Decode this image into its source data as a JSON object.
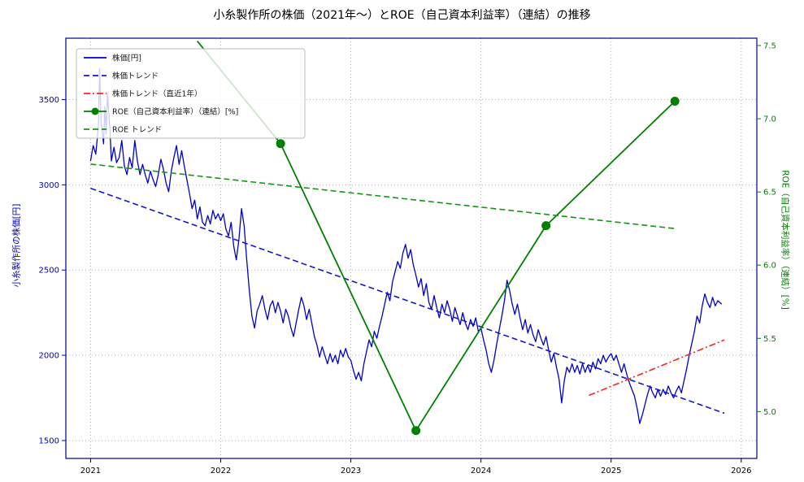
{
  "chart_data": {
    "type": "line",
    "title": "小糸製作所の株価（2021年～）とROE（自己資本利益率）（連結）の推移",
    "x_axis": {
      "ticks": [
        2021,
        2022,
        2023,
        2024,
        2025,
        2026
      ],
      "range": [
        2020.81,
        2026.12
      ]
    },
    "y_left": {
      "label": "小糸製作所の株価[円]",
      "color": "#0000cd",
      "ticks": [
        1500,
        2000,
        2500,
        3000,
        3500
      ],
      "range": [
        1395,
        3860
      ]
    },
    "y_right": {
      "label": "ROE（自己資本利益率）（連結）[%]",
      "color": "#008000",
      "ticks": [
        5.0,
        5.5,
        6.0,
        6.5,
        7.0,
        7.5
      ],
      "range": [
        4.68,
        7.55
      ]
    },
    "grid": true,
    "legend_position": "upper-left",
    "frame_color": "#00008b",
    "grid_color": "#a9a9d2",
    "series": [
      {
        "id": "price-line",
        "name": "株価[円]",
        "axis": "price",
        "color": "#0000cd",
        "style": "solid",
        "width": 1.3,
        "points": [
          [
            2021.0,
            3140
          ],
          [
            2021.02,
            3230
          ],
          [
            2021.04,
            3180
          ],
          [
            2021.06,
            3340
          ],
          [
            2021.07,
            3680
          ],
          [
            2021.08,
            3380
          ],
          [
            2021.1,
            3240
          ],
          [
            2021.11,
            3460
          ],
          [
            2021.12,
            3300
          ],
          [
            2021.13,
            3540
          ],
          [
            2021.15,
            3310
          ],
          [
            2021.16,
            3140
          ],
          [
            2021.18,
            3220
          ],
          [
            2021.2,
            3130
          ],
          [
            2021.22,
            3160
          ],
          [
            2021.24,
            3260
          ],
          [
            2021.26,
            3110
          ],
          [
            2021.28,
            3060
          ],
          [
            2021.3,
            3160
          ],
          [
            2021.32,
            3100
          ],
          [
            2021.34,
            3260
          ],
          [
            2021.36,
            3140
          ],
          [
            2021.38,
            3060
          ],
          [
            2021.4,
            3120
          ],
          [
            2021.42,
            3060
          ],
          [
            2021.44,
            3010
          ],
          [
            2021.46,
            3080
          ],
          [
            2021.48,
            3030
          ],
          [
            2021.5,
            2990
          ],
          [
            2021.52,
            3060
          ],
          [
            2021.54,
            3150
          ],
          [
            2021.56,
            3090
          ],
          [
            2021.58,
            3010
          ],
          [
            2021.6,
            2960
          ],
          [
            2021.62,
            3080
          ],
          [
            2021.64,
            3160
          ],
          [
            2021.66,
            3230
          ],
          [
            2021.68,
            3120
          ],
          [
            2021.7,
            3200
          ],
          [
            2021.72,
            3110
          ],
          [
            2021.74,
            3030
          ],
          [
            2021.76,
            2950
          ],
          [
            2021.78,
            2860
          ],
          [
            2021.8,
            2910
          ],
          [
            2021.82,
            2800
          ],
          [
            2021.84,
            2870
          ],
          [
            2021.86,
            2780
          ],
          [
            2021.88,
            2760
          ],
          [
            2021.9,
            2820
          ],
          [
            2021.92,
            2770
          ],
          [
            2021.94,
            2850
          ],
          [
            2021.96,
            2800
          ],
          [
            2021.98,
            2830
          ],
          [
            2022.0,
            2790
          ],
          [
            2022.02,
            2830
          ],
          [
            2022.04,
            2740
          ],
          [
            2022.06,
            2700
          ],
          [
            2022.08,
            2780
          ],
          [
            2022.1,
            2640
          ],
          [
            2022.12,
            2560
          ],
          [
            2022.14,
            2680
          ],
          [
            2022.16,
            2860
          ],
          [
            2022.18,
            2760
          ],
          [
            2022.2,
            2560
          ],
          [
            2022.22,
            2380
          ],
          [
            2022.24,
            2230
          ],
          [
            2022.26,
            2160
          ],
          [
            2022.28,
            2260
          ],
          [
            2022.3,
            2300
          ],
          [
            2022.32,
            2350
          ],
          [
            2022.34,
            2270
          ],
          [
            2022.36,
            2210
          ],
          [
            2022.38,
            2290
          ],
          [
            2022.4,
            2320
          ],
          [
            2022.42,
            2250
          ],
          [
            2022.44,
            2310
          ],
          [
            2022.46,
            2260
          ],
          [
            2022.48,
            2190
          ],
          [
            2022.5,
            2270
          ],
          [
            2022.52,
            2230
          ],
          [
            2022.54,
            2160
          ],
          [
            2022.56,
            2110
          ],
          [
            2022.58,
            2190
          ],
          [
            2022.6,
            2270
          ],
          [
            2022.62,
            2340
          ],
          [
            2022.64,
            2290
          ],
          [
            2022.66,
            2210
          ],
          [
            2022.68,
            2270
          ],
          [
            2022.7,
            2190
          ],
          [
            2022.72,
            2110
          ],
          [
            2022.74,
            2060
          ],
          [
            2022.76,
            1990
          ],
          [
            2022.78,
            2050
          ],
          [
            2022.8,
            2000
          ],
          [
            2022.82,
            1950
          ],
          [
            2022.84,
            2010
          ],
          [
            2022.86,
            1960
          ],
          [
            2022.88,
            2000
          ],
          [
            2022.9,
            1950
          ],
          [
            2022.92,
            2030
          ],
          [
            2022.94,
            1990
          ],
          [
            2022.96,
            2040
          ],
          [
            2022.98,
            1990
          ],
          [
            2023.0,
            1970
          ],
          [
            2023.02,
            1910
          ],
          [
            2023.04,
            1860
          ],
          [
            2023.06,
            1900
          ],
          [
            2023.08,
            1850
          ],
          [
            2023.1,
            1950
          ],
          [
            2023.12,
            2020
          ],
          [
            2023.14,
            2090
          ],
          [
            2023.16,
            2050
          ],
          [
            2023.18,
            2140
          ],
          [
            2023.2,
            2100
          ],
          [
            2023.22,
            2170
          ],
          [
            2023.24,
            2230
          ],
          [
            2023.26,
            2300
          ],
          [
            2023.28,
            2370
          ],
          [
            2023.3,
            2320
          ],
          [
            2023.32,
            2430
          ],
          [
            2023.34,
            2490
          ],
          [
            2023.36,
            2550
          ],
          [
            2023.38,
            2510
          ],
          [
            2023.4,
            2600
          ],
          [
            2023.42,
            2650
          ],
          [
            2023.44,
            2570
          ],
          [
            2023.46,
            2620
          ],
          [
            2023.48,
            2530
          ],
          [
            2023.5,
            2470
          ],
          [
            2023.52,
            2400
          ],
          [
            2023.54,
            2450
          ],
          [
            2023.56,
            2350
          ],
          [
            2023.58,
            2420
          ],
          [
            2023.6,
            2310
          ],
          [
            2023.62,
            2270
          ],
          [
            2023.64,
            2350
          ],
          [
            2023.66,
            2280
          ],
          [
            2023.68,
            2220
          ],
          [
            2023.7,
            2300
          ],
          [
            2023.72,
            2250
          ],
          [
            2023.74,
            2320
          ],
          [
            2023.76,
            2270
          ],
          [
            2023.78,
            2200
          ],
          [
            2023.8,
            2280
          ],
          [
            2023.82,
            2230
          ],
          [
            2023.84,
            2180
          ],
          [
            2023.86,
            2250
          ],
          [
            2023.88,
            2190
          ],
          [
            2023.9,
            2150
          ],
          [
            2023.92,
            2210
          ],
          [
            2023.94,
            2170
          ],
          [
            2023.96,
            2220
          ],
          [
            2023.98,
            2140
          ],
          [
            2024.0,
            2160
          ],
          [
            2024.02,
            2090
          ],
          [
            2024.04,
            2030
          ],
          [
            2024.06,
            1950
          ],
          [
            2024.08,
            1900
          ],
          [
            2024.1,
            1970
          ],
          [
            2024.12,
            2060
          ],
          [
            2024.14,
            2150
          ],
          [
            2024.16,
            2230
          ],
          [
            2024.18,
            2320
          ],
          [
            2024.2,
            2440
          ],
          [
            2024.22,
            2380
          ],
          [
            2024.24,
            2300
          ],
          [
            2024.26,
            2240
          ],
          [
            2024.28,
            2300
          ],
          [
            2024.3,
            2220
          ],
          [
            2024.32,
            2150
          ],
          [
            2024.34,
            2210
          ],
          [
            2024.36,
            2130
          ],
          [
            2024.38,
            2180
          ],
          [
            2024.4,
            2120
          ],
          [
            2024.42,
            2080
          ],
          [
            2024.44,
            2150
          ],
          [
            2024.46,
            2100
          ],
          [
            2024.48,
            2060
          ],
          [
            2024.5,
            2110
          ],
          [
            2024.52,
            2030
          ],
          [
            2024.54,
            1960
          ],
          [
            2024.56,
            2010
          ],
          [
            2024.58,
            1930
          ],
          [
            2024.6,
            1860
          ],
          [
            2024.62,
            1720
          ],
          [
            2024.64,
            1850
          ],
          [
            2024.66,
            1930
          ],
          [
            2024.68,
            1900
          ],
          [
            2024.7,
            1950
          ],
          [
            2024.72,
            1900
          ],
          [
            2024.74,
            1940
          ],
          [
            2024.76,
            1890
          ],
          [
            2024.78,
            1950
          ],
          [
            2024.8,
            1900
          ],
          [
            2024.82,
            1940
          ],
          [
            2024.84,
            1900
          ],
          [
            2024.86,
            1960
          ],
          [
            2024.88,
            1920
          ],
          [
            2024.9,
            1980
          ],
          [
            2024.92,
            1950
          ],
          [
            2024.94,
            2000
          ],
          [
            2024.96,
            1960
          ],
          [
            2024.98,
            1990
          ],
          [
            2025.0,
            2010
          ],
          [
            2025.02,
            1970
          ],
          [
            2025.04,
            2000
          ],
          [
            2025.06,
            1950
          ],
          [
            2025.08,
            1900
          ],
          [
            2025.1,
            1950
          ],
          [
            2025.12,
            1890
          ],
          [
            2025.14,
            1840
          ],
          [
            2025.16,
            1800
          ],
          [
            2025.18,
            1760
          ],
          [
            2025.2,
            1690
          ],
          [
            2025.22,
            1600
          ],
          [
            2025.24,
            1650
          ],
          [
            2025.26,
            1710
          ],
          [
            2025.28,
            1770
          ],
          [
            2025.3,
            1820
          ],
          [
            2025.32,
            1780
          ],
          [
            2025.34,
            1750
          ],
          [
            2025.36,
            1800
          ],
          [
            2025.38,
            1760
          ],
          [
            2025.4,
            1800
          ],
          [
            2025.42,
            1770
          ],
          [
            2025.44,
            1820
          ],
          [
            2025.46,
            1780
          ],
          [
            2025.48,
            1750
          ],
          [
            2025.5,
            1790
          ],
          [
            2025.52,
            1820
          ],
          [
            2025.54,
            1780
          ],
          [
            2025.56,
            1850
          ],
          [
            2025.58,
            1920
          ],
          [
            2025.6,
            2000
          ],
          [
            2025.62,
            2070
          ],
          [
            2025.64,
            2140
          ],
          [
            2025.66,
            2230
          ],
          [
            2025.68,
            2190
          ],
          [
            2025.7,
            2290
          ],
          [
            2025.72,
            2360
          ],
          [
            2025.74,
            2310
          ],
          [
            2025.76,
            2280
          ],
          [
            2025.78,
            2340
          ],
          [
            2025.8,
            2290
          ],
          [
            2025.82,
            2320
          ],
          [
            2025.85,
            2300
          ]
        ]
      },
      {
        "id": "price-trend-line",
        "name": "株価トレンド",
        "axis": "price",
        "color": "#1515d0",
        "style": "dashed",
        "width": 1.6,
        "points": [
          [
            2021.0,
            2980
          ],
          [
            2025.87,
            1660
          ]
        ]
      },
      {
        "id": "price-trend-recent-line",
        "name": "株価トレンド（直近1年）",
        "axis": "price",
        "color": "#ff2020",
        "style": "dashdot",
        "width": 1.6,
        "points": [
          [
            2024.83,
            1765
          ],
          [
            2025.87,
            2090
          ]
        ]
      },
      {
        "id": "roe-line",
        "name": "ROE（自己資本利益率）（連結）[%]",
        "axis": "roe",
        "color": "#008000",
        "style": "solid",
        "width": 1.8,
        "points": [
          [
            2021.82,
            7.53
          ],
          [
            2022.46,
            6.83
          ],
          [
            2023.5,
            4.87
          ],
          [
            2024.5,
            6.27
          ],
          [
            2025.49,
            7.12
          ]
        ],
        "marker_points": [
          [
            2022.46,
            6.83
          ],
          [
            2023.5,
            4.87
          ],
          [
            2024.5,
            6.27
          ],
          [
            2025.49,
            7.12
          ]
        ]
      },
      {
        "id": "roe-trend-line",
        "name": "ROE トレンド",
        "axis": "roe",
        "color": "#159415",
        "style": "dashed",
        "width": 1.6,
        "points": [
          [
            2021.0,
            6.69
          ],
          [
            2025.49,
            6.25
          ]
        ]
      }
    ]
  }
}
